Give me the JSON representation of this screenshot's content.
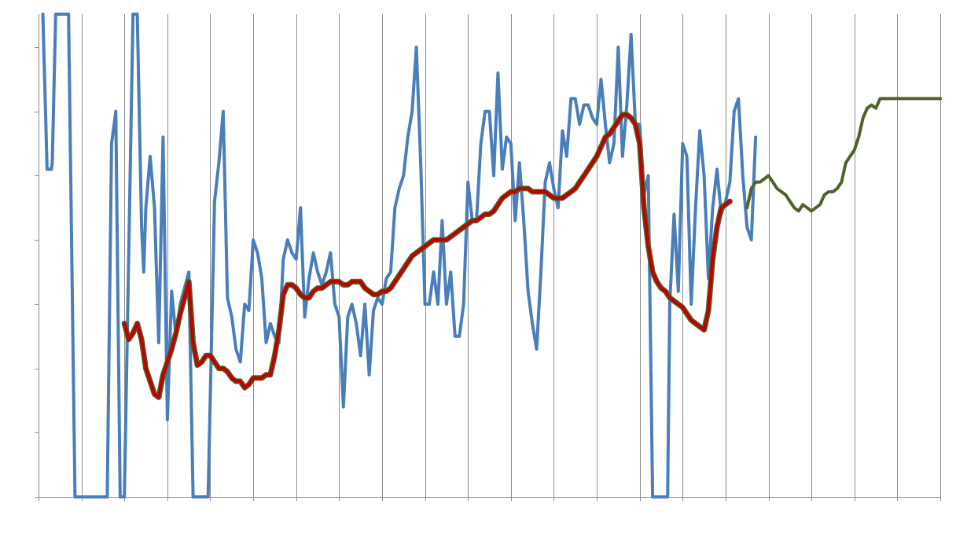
{
  "chart_data": {
    "type": "line",
    "title": "",
    "xlabel": "",
    "ylabel": "",
    "xlim": [
      0,
      210
    ],
    "ylim": [
      0,
      7.5
    ],
    "grid": {
      "vertical": true,
      "horizontal": false
    },
    "x_tick_step": 10,
    "y_tick_step": 1,
    "series": [
      {
        "color": "#4a7ebb",
        "stroke_width": 4,
        "points": [
          [
            1,
            7.6
          ],
          [
            2,
            5.1
          ],
          [
            3,
            5.1
          ],
          [
            3.2,
            5.2
          ],
          [
            4,
            7.6
          ],
          [
            7,
            7.6
          ],
          [
            8.5,
            0
          ],
          [
            16,
            0
          ],
          [
            17,
            5.5
          ],
          [
            18,
            6
          ],
          [
            19,
            0
          ],
          [
            20,
            0
          ],
          [
            22,
            7.6
          ],
          [
            23,
            7.6
          ],
          [
            24,
            4.2
          ],
          [
            24.5,
            3.5
          ],
          [
            25,
            4.5
          ],
          [
            26,
            5.3
          ],
          [
            27,
            4.5
          ],
          [
            28,
            2.4
          ],
          [
            29,
            5.6
          ],
          [
            30,
            1.2
          ],
          [
            31,
            3.2
          ],
          [
            32,
            2.5
          ],
          [
            33,
            3
          ],
          [
            35,
            3.5
          ],
          [
            36,
            0
          ],
          [
            39.5,
            0
          ],
          [
            41,
            4.6
          ],
          [
            42,
            5.2
          ],
          [
            43,
            6
          ],
          [
            44,
            3.1
          ],
          [
            45,
            2.8
          ],
          [
            46,
            2.3
          ],
          [
            47,
            2.1
          ],
          [
            48,
            3
          ],
          [
            49,
            2.9
          ],
          [
            50,
            4
          ],
          [
            51,
            3.8
          ],
          [
            52,
            3.4
          ],
          [
            53,
            2.4
          ],
          [
            54,
            2.7
          ],
          [
            55,
            2.5
          ],
          [
            56,
            2.4
          ],
          [
            57,
            3.7
          ],
          [
            58,
            4
          ],
          [
            59,
            3.8
          ],
          [
            60,
            3.7
          ],
          [
            61,
            4.5
          ],
          [
            62,
            2.8
          ],
          [
            63,
            3.4
          ],
          [
            64,
            3.8
          ],
          [
            65,
            3.5
          ],
          [
            66,
            3.3
          ],
          [
            67,
            3.5
          ],
          [
            68,
            3.8
          ],
          [
            69,
            3
          ],
          [
            70,
            2.8
          ],
          [
            71,
            1.4
          ],
          [
            72,
            2.8
          ],
          [
            73,
            3
          ],
          [
            74,
            2.7
          ],
          [
            75,
            2.2
          ],
          [
            76,
            3
          ],
          [
            77,
            1.9
          ],
          [
            78,
            2.9
          ],
          [
            79,
            3.1
          ],
          [
            80,
            3
          ],
          [
            81,
            3.4
          ],
          [
            82,
            3.5
          ],
          [
            83,
            4.5
          ],
          [
            84,
            4.8
          ],
          [
            85,
            5
          ],
          [
            86,
            5.6
          ],
          [
            87,
            6
          ],
          [
            88,
            7
          ],
          [
            89,
            5.2
          ],
          [
            90,
            3
          ],
          [
            91,
            3
          ],
          [
            92,
            3.5
          ],
          [
            93,
            3
          ],
          [
            94,
            4.3
          ],
          [
            95,
            3
          ],
          [
            96,
            3.5
          ],
          [
            97,
            2.5
          ],
          [
            98,
            2.5
          ],
          [
            99,
            3
          ],
          [
            100,
            4.9
          ],
          [
            101,
            4.3
          ],
          [
            102,
            4.3
          ],
          [
            103,
            5.5
          ],
          [
            104,
            6
          ],
          [
            105,
            6
          ],
          [
            106,
            5
          ],
          [
            107,
            6.6
          ],
          [
            108,
            5.1
          ],
          [
            109,
            5.6
          ],
          [
            110,
            5.5
          ],
          [
            111,
            4.3
          ],
          [
            112,
            5.2
          ],
          [
            113,
            4.3
          ],
          [
            114,
            3.2
          ],
          [
            115,
            2.7
          ],
          [
            116,
            2.3
          ],
          [
            117,
            3.5
          ],
          [
            118,
            4.9
          ],
          [
            119,
            5.2
          ],
          [
            120,
            4.8
          ],
          [
            121,
            4.5
          ],
          [
            122,
            5.7
          ],
          [
            123,
            5.3
          ],
          [
            124,
            6.2
          ],
          [
            125,
            6.2
          ],
          [
            126,
            5.8
          ],
          [
            127,
            6.1
          ],
          [
            128,
            6.1
          ],
          [
            129,
            5.9
          ],
          [
            130,
            5.8
          ],
          [
            131,
            6.5
          ],
          [
            132,
            5.8
          ],
          [
            133,
            5.2
          ],
          [
            134,
            5.5
          ],
          [
            135,
            7
          ],
          [
            136,
            5.3
          ],
          [
            137,
            6.1
          ],
          [
            138,
            7.2
          ],
          [
            139,
            5.8
          ],
          [
            140,
            5.8
          ],
          [
            141,
            4.7
          ],
          [
            142,
            5
          ],
          [
            143,
            0
          ],
          [
            146.5,
            0
          ],
          [
            147,
            3
          ],
          [
            148,
            4.4
          ],
          [
            149,
            3.2
          ],
          [
            150,
            5.5
          ],
          [
            151,
            5.3
          ],
          [
            152,
            3
          ],
          [
            153,
            4.5
          ],
          [
            154,
            5.7
          ],
          [
            155,
            5
          ],
          [
            156,
            3.4
          ],
          [
            157,
            4.5
          ],
          [
            158,
            5.1
          ],
          [
            159,
            4.4
          ],
          [
            160,
            4.6
          ],
          [
            161,
            4.9
          ],
          [
            162,
            6
          ],
          [
            163,
            6.2
          ],
          [
            164,
            5
          ],
          [
            165,
            4.2
          ],
          [
            166,
            4
          ],
          [
            167,
            5.6
          ]
        ]
      },
      {
        "color": "#4f6228",
        "stroke_width": 4,
        "points": [
          [
            165,
            4.5
          ],
          [
            166,
            4.8
          ],
          [
            167,
            4.9
          ],
          [
            168,
            4.9
          ],
          [
            169,
            4.95
          ],
          [
            170,
            5
          ],
          [
            171,
            4.9
          ],
          [
            172,
            4.8
          ],
          [
            173,
            4.75
          ],
          [
            174,
            4.7
          ],
          [
            175,
            4.6
          ],
          [
            176,
            4.5
          ],
          [
            177,
            4.45
          ],
          [
            178,
            4.55
          ],
          [
            179,
            4.5
          ],
          [
            180,
            4.45
          ],
          [
            181,
            4.5
          ],
          [
            182,
            4.55
          ],
          [
            183,
            4.7
          ],
          [
            184,
            4.75
          ],
          [
            185,
            4.75
          ],
          [
            186,
            4.8
          ],
          [
            187,
            4.9
          ],
          [
            188,
            5.2
          ],
          [
            189,
            5.3
          ],
          [
            190,
            5.4
          ],
          [
            191,
            5.6
          ],
          [
            192,
            5.9
          ],
          [
            193,
            6.05
          ],
          [
            194,
            6.1
          ],
          [
            195,
            6.05
          ],
          [
            196,
            6.2
          ],
          [
            210,
            6.2
          ]
        ]
      },
      {
        "color": "#c00000",
        "underlay_color": "#4f6228",
        "stroke_width": 4,
        "points": [
          [
            20,
            2.7
          ],
          [
            21,
            2.45
          ],
          [
            22,
            2.55
          ],
          [
            23,
            2.7
          ],
          [
            24,
            2.45
          ],
          [
            25,
            2
          ],
          [
            26,
            1.8
          ],
          [
            27,
            1.6
          ],
          [
            28,
            1.55
          ],
          [
            29,
            1.9
          ],
          [
            30,
            2.1
          ],
          [
            31,
            2.3
          ],
          [
            32,
            2.55
          ],
          [
            33,
            2.85
          ],
          [
            34,
            3.1
          ],
          [
            35,
            3.35
          ],
          [
            36,
            2.4
          ],
          [
            37,
            2.05
          ],
          [
            38,
            2.1
          ],
          [
            39,
            2.2
          ],
          [
            40,
            2.2
          ],
          [
            41,
            2.1
          ],
          [
            42,
            2
          ],
          [
            43,
            2
          ],
          [
            44,
            1.95
          ],
          [
            45,
            1.85
          ],
          [
            46,
            1.8
          ],
          [
            47,
            1.8
          ],
          [
            48,
            1.7
          ],
          [
            49,
            1.75
          ],
          [
            50,
            1.85
          ],
          [
            51,
            1.85
          ],
          [
            52,
            1.85
          ],
          [
            53,
            1.9
          ],
          [
            54,
            1.9
          ],
          [
            55,
            2.2
          ],
          [
            56,
            2.6
          ],
          [
            57,
            3.15
          ],
          [
            58,
            3.3
          ],
          [
            59,
            3.3
          ],
          [
            60,
            3.25
          ],
          [
            61,
            3.15
          ],
          [
            62,
            3.1
          ],
          [
            63,
            3.1
          ],
          [
            64,
            3.2
          ],
          [
            65,
            3.25
          ],
          [
            66,
            3.25
          ],
          [
            67,
            3.3
          ],
          [
            68,
            3.35
          ],
          [
            69,
            3.35
          ],
          [
            70,
            3.35
          ],
          [
            71,
            3.3
          ],
          [
            72,
            3.3
          ],
          [
            73,
            3.35
          ],
          [
            74,
            3.35
          ],
          [
            75,
            3.35
          ],
          [
            76,
            3.25
          ],
          [
            77,
            3.2
          ],
          [
            78,
            3.15
          ],
          [
            79,
            3.15
          ],
          [
            80,
            3.2
          ],
          [
            81,
            3.2
          ],
          [
            82,
            3.25
          ],
          [
            83,
            3.35
          ],
          [
            84,
            3.45
          ],
          [
            85,
            3.55
          ],
          [
            86,
            3.65
          ],
          [
            87,
            3.75
          ],
          [
            88,
            3.8
          ],
          [
            89,
            3.85
          ],
          [
            90,
            3.9
          ],
          [
            91,
            3.95
          ],
          [
            92,
            4
          ],
          [
            93,
            4
          ],
          [
            94,
            4
          ],
          [
            95,
            4
          ],
          [
            96,
            4.05
          ],
          [
            97,
            4.1
          ],
          [
            98,
            4.15
          ],
          [
            99,
            4.2
          ],
          [
            100,
            4.25
          ],
          [
            101,
            4.3
          ],
          [
            102,
            4.3
          ],
          [
            103,
            4.35
          ],
          [
            104,
            4.4
          ],
          [
            105,
            4.4
          ],
          [
            106,
            4.45
          ],
          [
            107,
            4.55
          ],
          [
            108,
            4.65
          ],
          [
            109,
            4.7
          ],
          [
            110,
            4.75
          ],
          [
            111,
            4.75
          ],
          [
            112,
            4.8
          ],
          [
            113,
            4.8
          ],
          [
            114,
            4.8
          ],
          [
            115,
            4.75
          ],
          [
            116,
            4.75
          ],
          [
            117,
            4.75
          ],
          [
            118,
            4.75
          ],
          [
            119,
            4.7
          ],
          [
            120,
            4.65
          ],
          [
            121,
            4.65
          ],
          [
            122,
            4.65
          ],
          [
            123,
            4.7
          ],
          [
            124,
            4.75
          ],
          [
            125,
            4.8
          ],
          [
            126,
            4.9
          ],
          [
            127,
            5
          ],
          [
            128,
            5.1
          ],
          [
            129,
            5.2
          ],
          [
            130,
            5.3
          ],
          [
            131,
            5.45
          ],
          [
            132,
            5.6
          ],
          [
            133,
            5.65
          ],
          [
            134,
            5.75
          ],
          [
            135,
            5.85
          ],
          [
            136,
            5.95
          ],
          [
            137,
            5.95
          ],
          [
            138,
            5.9
          ],
          [
            139,
            5.8
          ],
          [
            140,
            5.5
          ],
          [
            141,
            4.5
          ],
          [
            142,
            3.9
          ],
          [
            143,
            3.5
          ],
          [
            144,
            3.35
          ],
          [
            145,
            3.25
          ],
          [
            146,
            3.2
          ],
          [
            147,
            3.1
          ],
          [
            148,
            3.05
          ],
          [
            149,
            3
          ],
          [
            150,
            2.95
          ],
          [
            151,
            2.85
          ],
          [
            152,
            2.75
          ],
          [
            153,
            2.7
          ],
          [
            154,
            2.65
          ],
          [
            155,
            2.6
          ],
          [
            156,
            2.9
          ],
          [
            157,
            3.7
          ],
          [
            158,
            4.2
          ],
          [
            159,
            4.5
          ],
          [
            160,
            4.55
          ],
          [
            161,
            4.6
          ]
        ]
      }
    ]
  }
}
